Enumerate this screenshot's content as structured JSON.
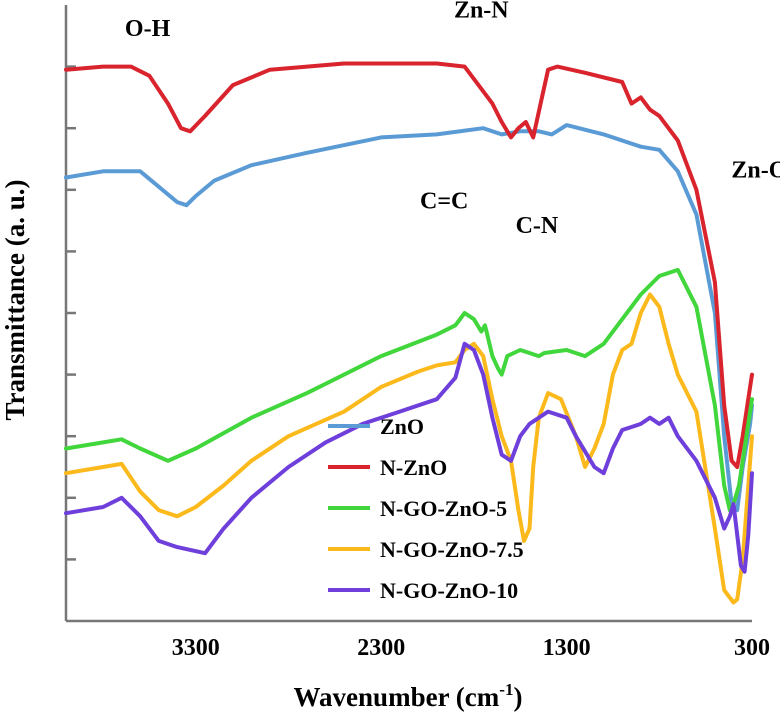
{
  "chart_data": {
    "type": "line",
    "xlabel": "Wavenumber (cm",
    "xlabel_sup": "-1",
    "xlabel_close": ")",
    "ylabel": "Transmittance (a. u.)",
    "x_reversed": true,
    "xlim": [
      4000,
      300
    ],
    "x_ticks": [
      3300,
      2300,
      1300,
      300
    ],
    "ylim": [
      0,
      100
    ],
    "y_ticks_unlabeled": [
      10,
      20,
      30,
      40,
      50,
      60,
      70,
      80,
      90
    ],
    "grid": false,
    "legend_position": "bottom-center",
    "annotations": [
      {
        "text": "O-H",
        "x": 3560,
        "y": 95
      },
      {
        "text": "Zn-N",
        "x": 1760,
        "y": 98
      },
      {
        "text": "Zn-O",
        "x": 260,
        "y": 72
      },
      {
        "text": "C=C",
        "x": 1960,
        "y": 67
      },
      {
        "text": "C-N",
        "x": 1460,
        "y": 63
      }
    ],
    "series": [
      {
        "name": "ZnO",
        "color": "#5b9bd5",
        "points": [
          [
            4000,
            72
          ],
          [
            3800,
            73
          ],
          [
            3600,
            73
          ],
          [
            3500,
            70.5
          ],
          [
            3400,
            68
          ],
          [
            3350,
            67.5
          ],
          [
            3300,
            69
          ],
          [
            3200,
            71.5
          ],
          [
            3000,
            74
          ],
          [
            2700,
            76
          ],
          [
            2300,
            78.5
          ],
          [
            2000,
            79
          ],
          [
            1750,
            80
          ],
          [
            1650,
            79
          ],
          [
            1550,
            79.5
          ],
          [
            1450,
            79.5
          ],
          [
            1380,
            79
          ],
          [
            1300,
            80.5
          ],
          [
            1100,
            79
          ],
          [
            900,
            77
          ],
          [
            800,
            76.5
          ],
          [
            700,
            73
          ],
          [
            600,
            66
          ],
          [
            500,
            50
          ],
          [
            450,
            30
          ],
          [
            410,
            19
          ],
          [
            380,
            18
          ],
          [
            350,
            25
          ],
          [
            310,
            32
          ],
          [
            300,
            35
          ]
        ]
      },
      {
        "name": "N-ZnO",
        "color": "#d9232d",
        "points": [
          [
            4000,
            89.5
          ],
          [
            3800,
            90
          ],
          [
            3650,
            90
          ],
          [
            3550,
            88.5
          ],
          [
            3450,
            84
          ],
          [
            3380,
            80
          ],
          [
            3330,
            79.5
          ],
          [
            3250,
            82
          ],
          [
            3100,
            87
          ],
          [
            2900,
            89.5
          ],
          [
            2500,
            90.5
          ],
          [
            2000,
            90.5
          ],
          [
            1850,
            90
          ],
          [
            1800,
            88
          ],
          [
            1700,
            84
          ],
          [
            1650,
            81
          ],
          [
            1600,
            78.5
          ],
          [
            1560,
            80
          ],
          [
            1520,
            81
          ],
          [
            1480,
            78.5
          ],
          [
            1440,
            84
          ],
          [
            1400,
            89.5
          ],
          [
            1350,
            90
          ],
          [
            1200,
            89
          ],
          [
            1000,
            87.5
          ],
          [
            950,
            84
          ],
          [
            900,
            85
          ],
          [
            850,
            83
          ],
          [
            800,
            82
          ],
          [
            700,
            78
          ],
          [
            600,
            70
          ],
          [
            500,
            55
          ],
          [
            450,
            35
          ],
          [
            410,
            26
          ],
          [
            380,
            25
          ],
          [
            350,
            30
          ],
          [
            310,
            38
          ],
          [
            300,
            40
          ]
        ]
      },
      {
        "name": "N-GO-ZnO-5",
        "color": "#41d63c",
        "points": [
          [
            4000,
            28
          ],
          [
            3800,
            29
          ],
          [
            3700,
            29.5
          ],
          [
            3600,
            28
          ],
          [
            3450,
            26
          ],
          [
            3300,
            28
          ],
          [
            3000,
            33
          ],
          [
            2700,
            37
          ],
          [
            2300,
            43
          ],
          [
            2000,
            46.5
          ],
          [
            1900,
            48
          ],
          [
            1850,
            50
          ],
          [
            1800,
            49
          ],
          [
            1760,
            47
          ],
          [
            1740,
            48
          ],
          [
            1700,
            43
          ],
          [
            1670,
            41
          ],
          [
            1650,
            40
          ],
          [
            1620,
            43
          ],
          [
            1550,
            44
          ],
          [
            1500,
            43.5
          ],
          [
            1450,
            43
          ],
          [
            1420,
            43.5
          ],
          [
            1300,
            44
          ],
          [
            1200,
            43
          ],
          [
            1100,
            45
          ],
          [
            1000,
            49
          ],
          [
            900,
            53
          ],
          [
            800,
            56
          ],
          [
            700,
            57
          ],
          [
            600,
            51
          ],
          [
            500,
            35
          ],
          [
            450,
            22
          ],
          [
            420,
            18
          ],
          [
            400,
            19
          ],
          [
            370,
            22
          ],
          [
            330,
            30
          ],
          [
            300,
            36
          ]
        ]
      },
      {
        "name": "N-GO-ZnO-7.5",
        "color": "#fbb91c",
        "points": [
          [
            4000,
            24
          ],
          [
            3800,
            25
          ],
          [
            3700,
            25.5
          ],
          [
            3600,
            21
          ],
          [
            3500,
            18
          ],
          [
            3400,
            17
          ],
          [
            3300,
            18.5
          ],
          [
            3150,
            22
          ],
          [
            3000,
            26
          ],
          [
            2800,
            30
          ],
          [
            2500,
            34
          ],
          [
            2300,
            38
          ],
          [
            2100,
            40.5
          ],
          [
            2000,
            41.5
          ],
          [
            1900,
            42
          ],
          [
            1850,
            44
          ],
          [
            1800,
            45
          ],
          [
            1750,
            43
          ],
          [
            1700,
            36
          ],
          [
            1650,
            30
          ],
          [
            1600,
            26
          ],
          [
            1560,
            18
          ],
          [
            1530,
            13
          ],
          [
            1500,
            15
          ],
          [
            1480,
            25
          ],
          [
            1450,
            33
          ],
          [
            1400,
            37
          ],
          [
            1330,
            36
          ],
          [
            1250,
            30
          ],
          [
            1200,
            25
          ],
          [
            1150,
            28
          ],
          [
            1100,
            32
          ],
          [
            1050,
            40
          ],
          [
            1000,
            44
          ],
          [
            950,
            45
          ],
          [
            900,
            50
          ],
          [
            850,
            53
          ],
          [
            800,
            51
          ],
          [
            750,
            45
          ],
          [
            700,
            40
          ],
          [
            600,
            34
          ],
          [
            500,
            15
          ],
          [
            450,
            5
          ],
          [
            400,
            3
          ],
          [
            380,
            3.5
          ],
          [
            350,
            10
          ],
          [
            320,
            22
          ],
          [
            300,
            30
          ]
        ]
      },
      {
        "name": "N-GO-ZnO-10",
        "color": "#6f3fdb",
        "points": [
          [
            4000,
            17.5
          ],
          [
            3800,
            18.5
          ],
          [
            3700,
            20
          ],
          [
            3600,
            17
          ],
          [
            3500,
            13
          ],
          [
            3400,
            12
          ],
          [
            3250,
            11
          ],
          [
            3150,
            15
          ],
          [
            3000,
            20
          ],
          [
            2800,
            25
          ],
          [
            2600,
            29
          ],
          [
            2400,
            32
          ],
          [
            2200,
            34
          ],
          [
            2000,
            36
          ],
          [
            1900,
            39.5
          ],
          [
            1850,
            45
          ],
          [
            1800,
            44
          ],
          [
            1750,
            40
          ],
          [
            1700,
            33
          ],
          [
            1650,
            27
          ],
          [
            1600,
            26
          ],
          [
            1550,
            30
          ],
          [
            1500,
            32
          ],
          [
            1400,
            34
          ],
          [
            1300,
            33
          ],
          [
            1250,
            30
          ],
          [
            1150,
            25
          ],
          [
            1100,
            24
          ],
          [
            1050,
            28
          ],
          [
            1000,
            31
          ],
          [
            950,
            31.5
          ],
          [
            900,
            32
          ],
          [
            850,
            33
          ],
          [
            800,
            32
          ],
          [
            750,
            33
          ],
          [
            700,
            30
          ],
          [
            600,
            26
          ],
          [
            500,
            20
          ],
          [
            450,
            15
          ],
          [
            420,
            17
          ],
          [
            400,
            19
          ],
          [
            380,
            14
          ],
          [
            360,
            9
          ],
          [
            340,
            8
          ],
          [
            320,
            14
          ],
          [
            300,
            24
          ]
        ]
      }
    ]
  }
}
